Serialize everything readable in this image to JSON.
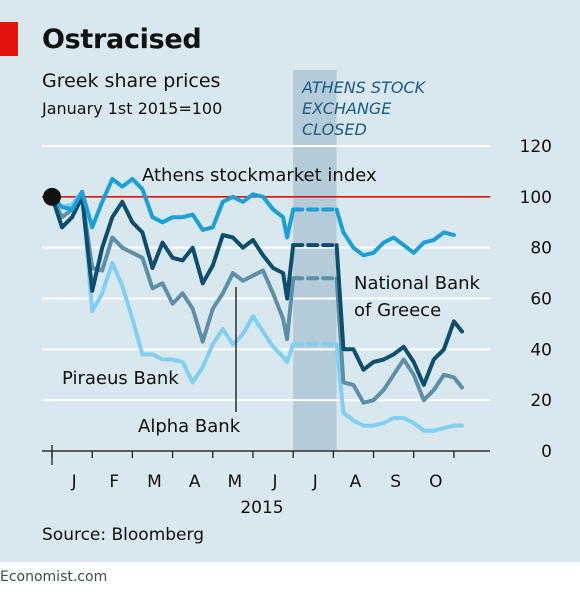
{
  "header": {
    "title": "Ostracised",
    "subtitle": "Greek share prices",
    "subtitle2": "January 1st 2015=100"
  },
  "source": "Source: Bloomberg",
  "footer": "Economist.com",
  "chart_data": {
    "type": "line",
    "ylim": [
      0,
      120
    ],
    "yticks": [
      0,
      20,
      40,
      60,
      80,
      100,
      120
    ],
    "xlim": [
      0,
      10.4
    ],
    "months": [
      "J",
      "F",
      "M",
      "A",
      "M",
      "J",
      "J",
      "A",
      "S",
      "O"
    ],
    "year_label": "2015",
    "reference_line": 100,
    "shade": {
      "from": 6.0,
      "to": 7.08,
      "label": [
        "ATHENS STOCK",
        "EXCHANGE",
        "CLOSED"
      ]
    },
    "series": [
      {
        "name": "Athens stockmarket index",
        "color": "#1aa0d9",
        "points": [
          [
            0,
            100
          ],
          [
            0.25,
            96
          ],
          [
            0.5,
            95
          ],
          [
            0.75,
            102
          ],
          [
            1.0,
            88
          ],
          [
            1.25,
            98
          ],
          [
            1.5,
            107
          ],
          [
            1.75,
            104
          ],
          [
            2.0,
            107
          ],
          [
            2.25,
            103
          ],
          [
            2.5,
            92
          ],
          [
            2.75,
            90
          ],
          [
            3.0,
            92
          ],
          [
            3.25,
            92
          ],
          [
            3.5,
            93
          ],
          [
            3.75,
            87
          ],
          [
            4.0,
            88
          ],
          [
            4.25,
            98
          ],
          [
            4.5,
            100
          ],
          [
            4.75,
            98
          ],
          [
            5.0,
            101
          ],
          [
            5.25,
            100
          ],
          [
            5.5,
            95
          ],
          [
            5.75,
            92
          ],
          [
            5.85,
            84
          ],
          [
            6.0,
            95
          ]
        ],
        "gap": [
          [
            6.0,
            95
          ],
          [
            7.08,
            95
          ]
        ],
        "points2": [
          [
            7.08,
            95
          ],
          [
            7.25,
            86
          ],
          [
            7.5,
            80
          ],
          [
            7.75,
            77
          ],
          [
            8.0,
            78
          ],
          [
            8.25,
            82
          ],
          [
            8.5,
            84
          ],
          [
            8.75,
            81
          ],
          [
            9.0,
            78
          ],
          [
            9.25,
            82
          ],
          [
            9.5,
            83
          ],
          [
            9.75,
            86
          ],
          [
            10.0,
            85
          ]
        ]
      },
      {
        "name": "National Bank of Greece",
        "color": "#0d4d6e",
        "points": [
          [
            0,
            100
          ],
          [
            0.25,
            88
          ],
          [
            0.5,
            92
          ],
          [
            0.75,
            100
          ],
          [
            1.0,
            63
          ],
          [
            1.25,
            80
          ],
          [
            1.5,
            92
          ],
          [
            1.75,
            98
          ],
          [
            2.0,
            90
          ],
          [
            2.25,
            86
          ],
          [
            2.5,
            72
          ],
          [
            2.75,
            82
          ],
          [
            3.0,
            76
          ],
          [
            3.25,
            75
          ],
          [
            3.5,
            80
          ],
          [
            3.75,
            66
          ],
          [
            4.0,
            73
          ],
          [
            4.25,
            85
          ],
          [
            4.5,
            84
          ],
          [
            4.75,
            80
          ],
          [
            5.0,
            83
          ],
          [
            5.25,
            77
          ],
          [
            5.5,
            72
          ],
          [
            5.75,
            70
          ],
          [
            5.85,
            60
          ],
          [
            6.0,
            81
          ]
        ],
        "gap": [
          [
            6.0,
            81
          ],
          [
            7.08,
            81
          ]
        ],
        "points2": [
          [
            7.08,
            81
          ],
          [
            7.25,
            40
          ],
          [
            7.5,
            40
          ],
          [
            7.75,
            32
          ],
          [
            8.0,
            35
          ],
          [
            8.25,
            36
          ],
          [
            8.5,
            38
          ],
          [
            8.75,
            41
          ],
          [
            9.0,
            35
          ],
          [
            9.25,
            26
          ],
          [
            9.5,
            36
          ],
          [
            9.75,
            40
          ],
          [
            10.0,
            51
          ],
          [
            10.2,
            47
          ]
        ]
      },
      {
        "name": "Alpha Bank",
        "color": "#5d8fa8",
        "points": [
          [
            0,
            100
          ],
          [
            0.25,
            92
          ],
          [
            0.5,
            95
          ],
          [
            0.75,
            100
          ],
          [
            1.0,
            72
          ],
          [
            1.25,
            71
          ],
          [
            1.5,
            84
          ],
          [
            1.75,
            80
          ],
          [
            2.0,
            78
          ],
          [
            2.25,
            76
          ],
          [
            2.5,
            64
          ],
          [
            2.75,
            66
          ],
          [
            3.0,
            58
          ],
          [
            3.25,
            62
          ],
          [
            3.5,
            56
          ],
          [
            3.75,
            43
          ],
          [
            4.0,
            56
          ],
          [
            4.25,
            62
          ],
          [
            4.5,
            70
          ],
          [
            4.75,
            67
          ],
          [
            5.0,
            69
          ],
          [
            5.25,
            71
          ],
          [
            5.5,
            62
          ],
          [
            5.75,
            52
          ],
          [
            5.85,
            44
          ],
          [
            6.0,
            68
          ]
        ],
        "gap": [
          [
            6.0,
            68
          ],
          [
            7.08,
            68
          ]
        ],
        "points2": [
          [
            7.08,
            68
          ],
          [
            7.25,
            27
          ],
          [
            7.5,
            26
          ],
          [
            7.75,
            19
          ],
          [
            8.0,
            20
          ],
          [
            8.25,
            24
          ],
          [
            8.5,
            30
          ],
          [
            8.75,
            36
          ],
          [
            9.0,
            30
          ],
          [
            9.25,
            20
          ],
          [
            9.5,
            24
          ],
          [
            9.75,
            30
          ],
          [
            10.0,
            29
          ],
          [
            10.2,
            25
          ]
        ]
      },
      {
        "name": "Piraeus Bank",
        "color": "#7fd0f2",
        "points": [
          [
            0,
            100
          ],
          [
            0.25,
            96
          ],
          [
            0.5,
            97
          ],
          [
            0.75,
            102
          ],
          [
            1.0,
            55
          ],
          [
            1.25,
            62
          ],
          [
            1.5,
            74
          ],
          [
            1.75,
            65
          ],
          [
            2.0,
            52
          ],
          [
            2.25,
            38
          ],
          [
            2.5,
            38
          ],
          [
            2.75,
            36
          ],
          [
            3.0,
            36
          ],
          [
            3.25,
            35
          ],
          [
            3.5,
            27
          ],
          [
            3.75,
            33
          ],
          [
            4.0,
            42
          ],
          [
            4.25,
            48
          ],
          [
            4.5,
            42
          ],
          [
            4.75,
            46
          ],
          [
            5.0,
            53
          ],
          [
            5.25,
            47
          ],
          [
            5.5,
            41
          ],
          [
            5.75,
            37
          ],
          [
            5.85,
            35
          ],
          [
            6.0,
            42
          ]
        ],
        "gap": [
          [
            6.0,
            42
          ],
          [
            7.08,
            42
          ]
        ],
        "points2": [
          [
            7.08,
            42
          ],
          [
            7.25,
            15
          ],
          [
            7.5,
            12
          ],
          [
            7.75,
            10
          ],
          [
            8.0,
            10
          ],
          [
            8.25,
            11
          ],
          [
            8.5,
            13
          ],
          [
            8.75,
            13
          ],
          [
            9.0,
            11
          ],
          [
            9.25,
            8
          ],
          [
            9.5,
            8
          ],
          [
            9.75,
            9
          ],
          [
            10.0,
            10
          ],
          [
            10.2,
            10
          ]
        ]
      }
    ],
    "labels": {
      "athens": "Athens stockmarket index",
      "nbg_line1": "National Bank",
      "nbg_line2": "of Greece",
      "alpha": "Alpha Bank",
      "piraeus": "Piraeus Bank"
    }
  }
}
